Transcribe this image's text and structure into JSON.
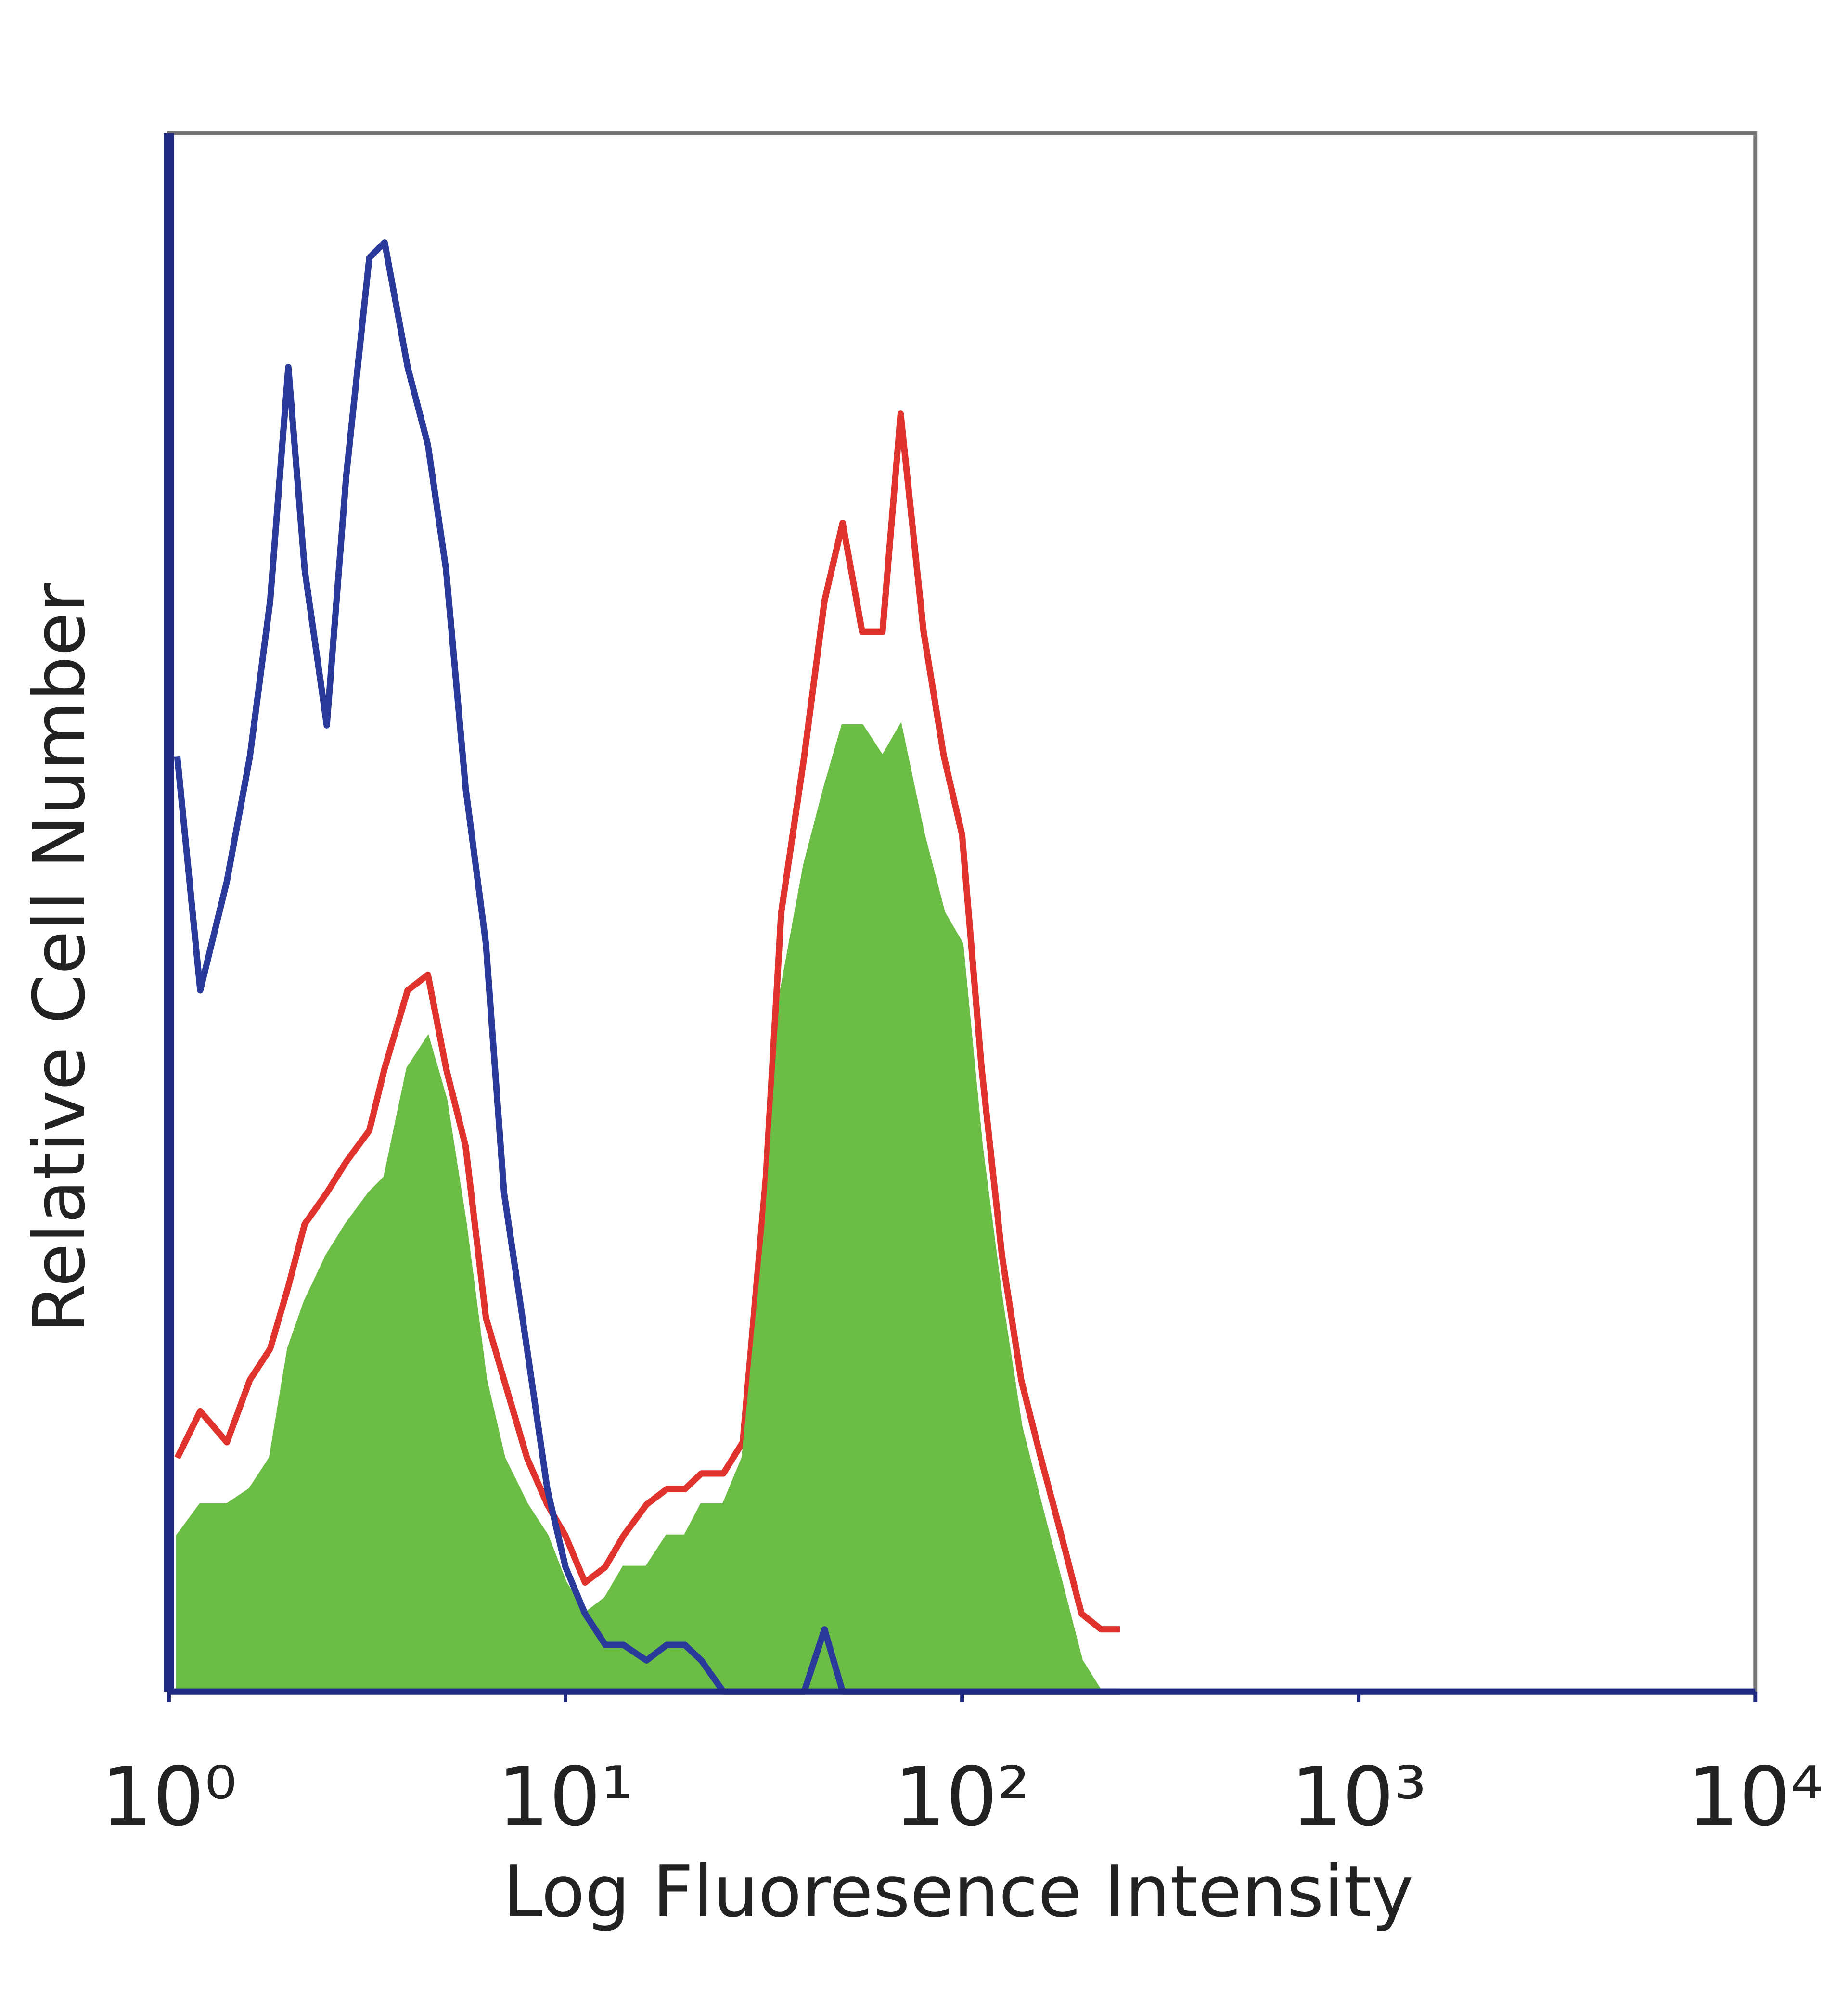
{
  "chart_data": {
    "type": "histogram",
    "xlabel": "Log Fluoresence Intensity",
    "ylabel": "Relative Cell Number",
    "xscale": "log",
    "xlim": [
      1,
      10000
    ],
    "xticks": [
      {
        "value": 1,
        "label": "10⁰"
      },
      {
        "value": 10,
        "label": "10¹"
      },
      {
        "value": 100,
        "label": "10²"
      },
      {
        "value": 1000,
        "label": "10³"
      },
      {
        "value": 10000,
        "label": "10⁴"
      }
    ],
    "ylim": [
      0,
      100
    ],
    "x": [
      1.05,
      1.2,
      1.4,
      1.6,
      1.8,
      2,
      2.2,
      2.5,
      2.8,
      3.2,
      3.5,
      4,
      4.5,
      5,
      5.6,
      6.3,
      7,
      8,
      9,
      10,
      11.2,
      12.6,
      14,
      16,
      18,
      20,
      22,
      25,
      28,
      32,
      35,
      40,
      45,
      50,
      56,
      63,
      70,
      80,
      90,
      100,
      112,
      126,
      141,
      158,
      178,
      200,
      224,
      250
    ],
    "series": [
      {
        "color": "#e0332d",
        "fill": false,
        "values": [
          15,
          18,
          16,
          20,
          22,
          26,
          30,
          32,
          34,
          36,
          40,
          45,
          46,
          40,
          35,
          24,
          20,
          15,
          12,
          10,
          7,
          8,
          10,
          12,
          13,
          13,
          14,
          14,
          16,
          33,
          50,
          60,
          70,
          75,
          68,
          68,
          82,
          68,
          60,
          55,
          40,
          28,
          20,
          15,
          10,
          5,
          4,
          4
        ]
      },
      {
        "color": "#6bbd45",
        "fill": true,
        "values": [
          10,
          12,
          12,
          13,
          15,
          22,
          25,
          28,
          30,
          32,
          33,
          40,
          42,
          38,
          30,
          20,
          15,
          12,
          10,
          7,
          5,
          6,
          8,
          8,
          10,
          10,
          12,
          12,
          15,
          30,
          45,
          53,
          58,
          62,
          62,
          60,
          62,
          55,
          50,
          48,
          35,
          25,
          17,
          12,
          7,
          2,
          0,
          0
        ]
      },
      {
        "color": "#2a3a9a",
        "fill": false,
        "values": [
          60,
          45,
          52,
          60,
          70,
          85,
          72,
          62,
          78,
          92,
          93,
          85,
          80,
          72,
          58,
          48,
          32,
          22,
          13,
          8,
          5,
          3,
          3,
          2,
          3,
          3,
          2,
          0,
          0,
          0,
          0,
          0,
          4,
          0,
          0,
          0,
          0,
          0,
          0,
          0,
          0,
          0,
          0,
          0,
          0,
          0,
          0,
          0
        ]
      }
    ]
  }
}
